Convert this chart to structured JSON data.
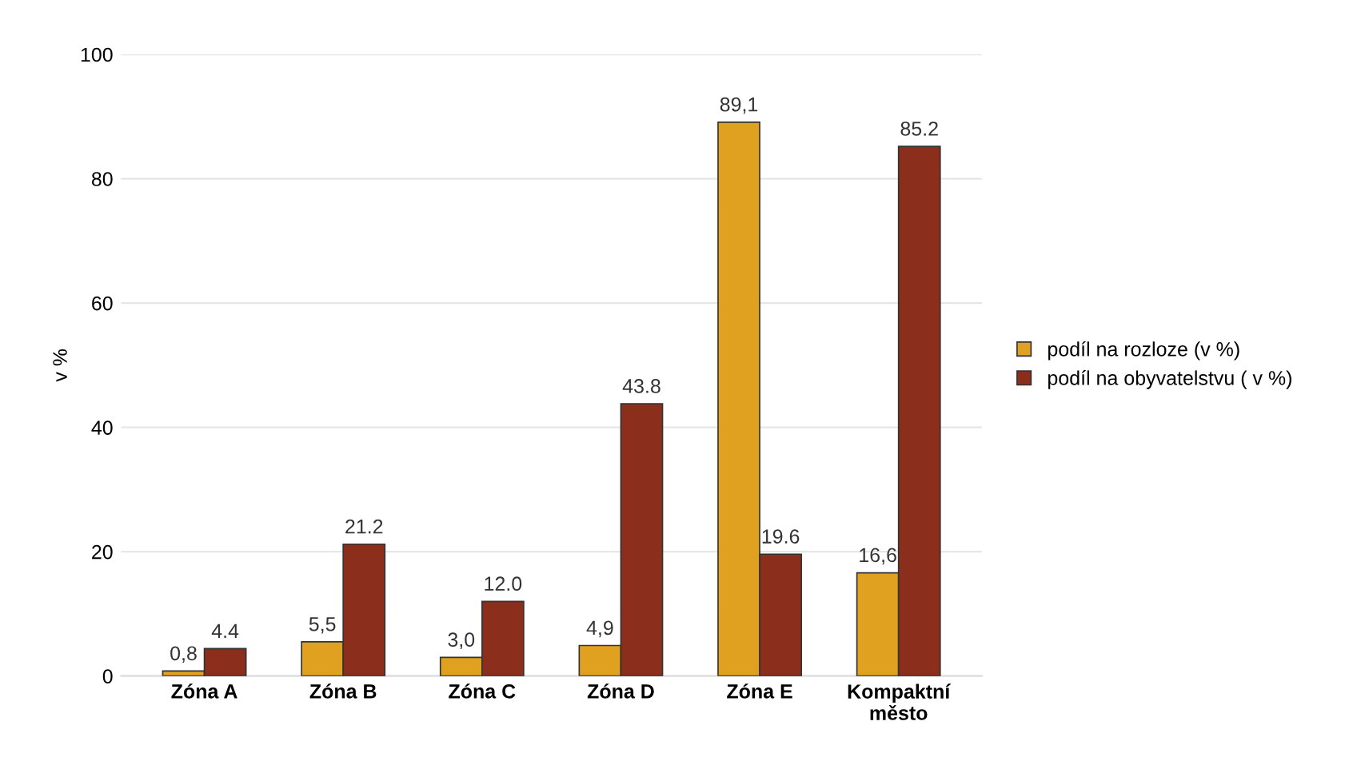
{
  "chart_data": {
    "type": "bar",
    "ylabel": "v %",
    "categories": [
      "Zóna A",
      "Zóna B",
      "Zóna C",
      "Zóna D",
      "Zóna E",
      "Kompaktní\nměsto"
    ],
    "series": [
      {
        "name": "podíl na rozloze (v %)",
        "color": "#e0a020",
        "values": [
          0.8,
          5.5,
          3.0,
          4.9,
          89.1,
          16.6
        ],
        "value_labels": [
          "0,8",
          "5,5",
          "3,0",
          "4,9",
          "89,1",
          "16,6"
        ]
      },
      {
        "name": "podíl na obyvatelstvu ( v %)",
        "color": "#8b2e1c",
        "values": [
          4.4,
          21.2,
          12.0,
          43.8,
          19.6,
          85.2
        ],
        "value_labels": [
          "4.4",
          "21.2",
          "12.0",
          "43.8",
          "19.6",
          "85.2"
        ]
      }
    ],
    "ylim": [
      0,
      100
    ],
    "yticks": [
      0,
      20,
      40,
      60,
      80,
      100
    ],
    "grid": "y",
    "legend": "right"
  }
}
